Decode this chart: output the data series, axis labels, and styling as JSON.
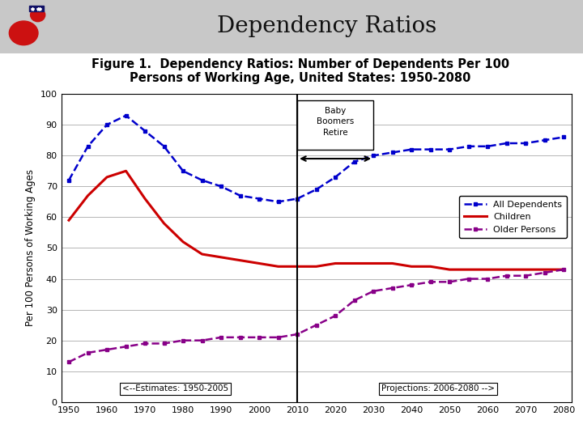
{
  "title": "Dependency Ratios",
  "figure_title": "Figure 1.  Dependency Ratios: Number of Dependents Per 100\nPersons of Working Age, United States: 1950-2080",
  "ylabel": "Per 100 Persons of Working Ages",
  "xlim": [
    1948,
    2082
  ],
  "ylim": [
    0,
    100
  ],
  "xticks": [
    1950,
    1960,
    1970,
    1980,
    1990,
    2000,
    2010,
    2020,
    2030,
    2040,
    2050,
    2060,
    2070,
    2080
  ],
  "yticks": [
    0,
    10,
    20,
    30,
    40,
    50,
    60,
    70,
    80,
    90,
    100
  ],
  "all_dependents_x": [
    1950,
    1955,
    1960,
    1965,
    1970,
    1975,
    1980,
    1985,
    1990,
    1995,
    2000,
    2005,
    2010,
    2015,
    2020,
    2025,
    2030,
    2035,
    2040,
    2045,
    2050,
    2055,
    2060,
    2065,
    2070,
    2075,
    2080
  ],
  "all_dependents_y": [
    72,
    83,
    90,
    93,
    88,
    83,
    75,
    72,
    70,
    67,
    66,
    65,
    66,
    69,
    73,
    78,
    80,
    81,
    82,
    82,
    82,
    83,
    83,
    84,
    84,
    85,
    86
  ],
  "children_x": [
    1950,
    1955,
    1960,
    1965,
    1970,
    1975,
    1980,
    1985,
    1990,
    1995,
    2000,
    2005,
    2010,
    2015,
    2020,
    2025,
    2030,
    2035,
    2040,
    2045,
    2050,
    2055,
    2060,
    2065,
    2070,
    2075,
    2080
  ],
  "children_y": [
    59,
    67,
    73,
    75,
    66,
    58,
    52,
    48,
    47,
    46,
    45,
    44,
    44,
    44,
    45,
    45,
    45,
    45,
    44,
    44,
    43,
    43,
    43,
    43,
    43,
    43,
    43
  ],
  "older_x": [
    1950,
    1955,
    1960,
    1965,
    1970,
    1975,
    1980,
    1985,
    1990,
    1995,
    2000,
    2005,
    2010,
    2015,
    2020,
    2025,
    2030,
    2035,
    2040,
    2045,
    2050,
    2055,
    2060,
    2065,
    2070,
    2075,
    2080
  ],
  "older_y": [
    13,
    16,
    17,
    18,
    19,
    19,
    20,
    20,
    21,
    21,
    21,
    21,
    22,
    25,
    28,
    33,
    36,
    37,
    38,
    39,
    39,
    40,
    40,
    41,
    41,
    42,
    43
  ],
  "all_color": "#0000CC",
  "children_color": "#CC0000",
  "older_color": "#880088",
  "estimates_label": "<--Estimates: 1950-2005",
  "projections_label": "Projections: 2006-2080 -->",
  "header_bg": "#C8C8C8",
  "title_fontsize": 20,
  "fig_title_fontsize": 10.5,
  "axis_fontsize": 8,
  "ylabel_fontsize": 8.5
}
